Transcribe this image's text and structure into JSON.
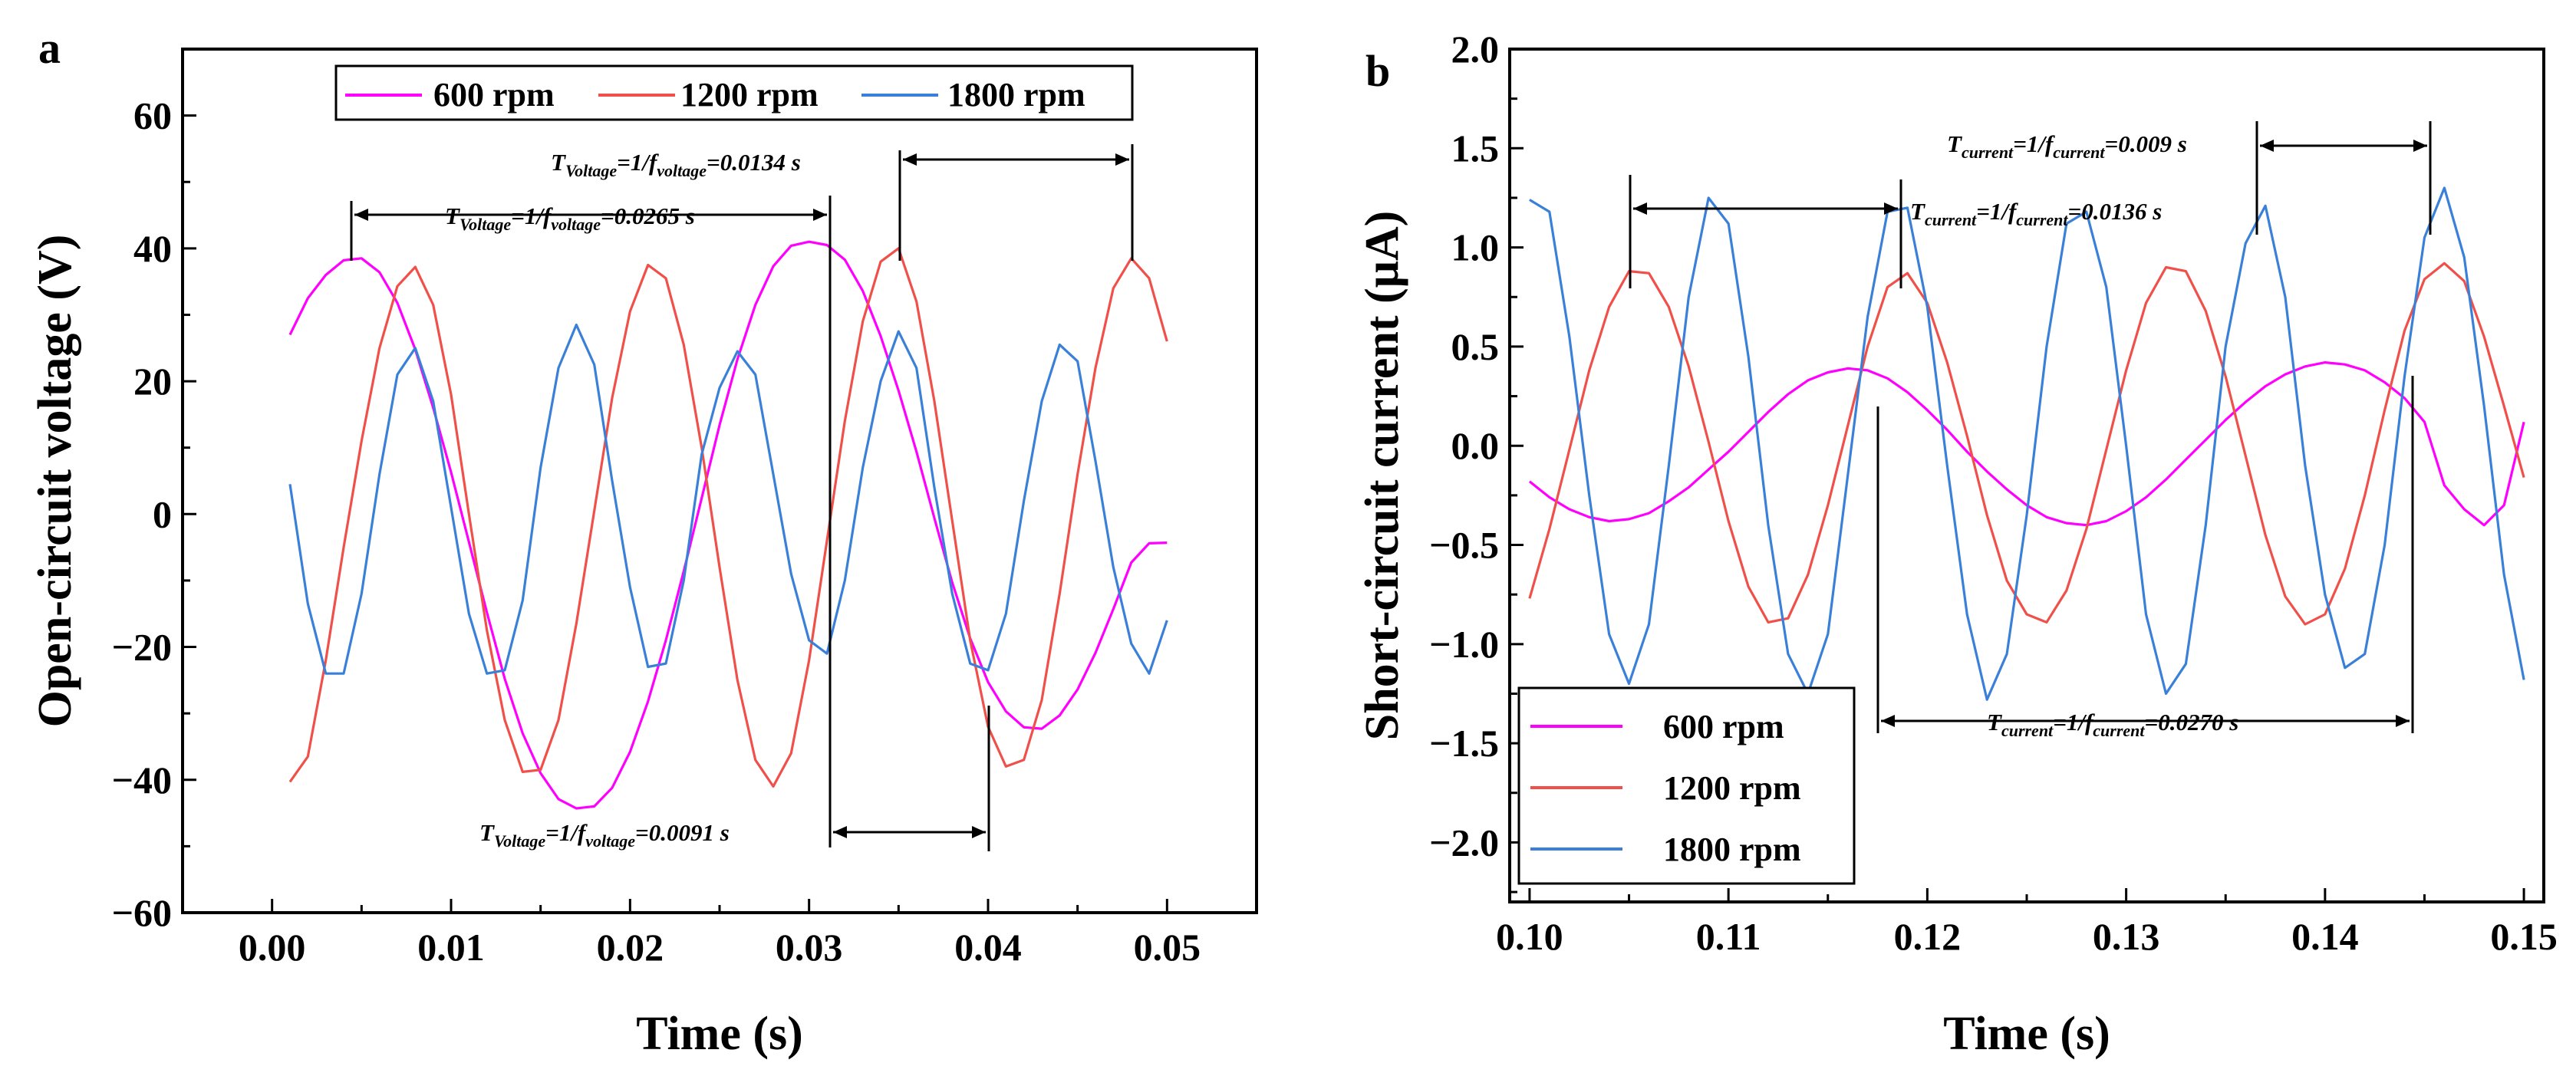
{
  "panel_a": {
    "letter": "a",
    "xlabel": "Time (s)",
    "ylabel": "Open-circuit voltage (V)",
    "xticks": [
      "0.00",
      "0.01",
      "0.02",
      "0.03",
      "0.04",
      "0.05"
    ],
    "yticks": [
      "60",
      "40",
      "20",
      "0",
      "−20",
      "−40",
      "−60"
    ],
    "legend": [
      "600 rpm",
      "1200 rpm",
      "1800 rpm"
    ],
    "annotations": [
      {
        "base": "T",
        "sub1": "Voltage",
        "mid": "=1/f",
        "sub2": "voltage",
        "tail": "=0.0265 s"
      },
      {
        "base": "T",
        "sub1": "Voltage",
        "mid": "=1/f",
        "sub2": "voltage",
        "tail": "=0.0134 s"
      },
      {
        "base": "T",
        "sub1": "Voltage",
        "mid": "=1/f",
        "sub2": "voltage",
        "tail": "=0.0091 s"
      }
    ]
  },
  "panel_b": {
    "letter": "b",
    "xlabel": "Time (s)",
    "ylabel": "Short-circuit current (μA)",
    "xticks": [
      "0.10",
      "0.11",
      "0.12",
      "0.13",
      "0.14",
      "0.15"
    ],
    "yticks": [
      "2.0",
      "1.5",
      "1.0",
      "0.5",
      "0.0",
      "−0.5",
      "−1.0",
      "−1.5",
      "−2.0"
    ],
    "legend": [
      "600 rpm",
      "1200 rpm",
      "1800 rpm"
    ],
    "annotations": [
      {
        "base": "T",
        "sub1": "current",
        "mid": "=1/f",
        "sub2": "current",
        "tail": "=0.009 s"
      },
      {
        "base": "T",
        "sub1": "current",
        "mid": "=1/f",
        "sub2": "current",
        "tail": "=0.0136 s"
      },
      {
        "base": "T",
        "sub1": "current",
        "mid": "=1/f",
        "sub2": "current",
        "tail": "=0.0270 s"
      }
    ]
  },
  "colors": {
    "s600": "#ff00ff",
    "s1200": "#f0504a",
    "s1800": "#3a80d8",
    "axis": "#000000"
  },
  "chart_data": [
    {
      "type": "line",
      "title": "",
      "xlabel": "Time (s)",
      "ylabel": "Open-circuit voltage (V)",
      "xlim": [
        -0.005,
        0.055
      ],
      "ylim": [
        -60,
        70
      ],
      "grid": false,
      "legend_position": "top",
      "x": [
        0.001,
        0.002,
        0.003,
        0.004,
        0.005,
        0.006,
        0.007,
        0.008,
        0.009,
        0.01,
        0.011,
        0.012,
        0.013,
        0.014,
        0.015,
        0.016,
        0.017,
        0.018,
        0.019,
        0.02,
        0.021,
        0.022,
        0.023,
        0.024,
        0.025,
        0.026,
        0.027,
        0.028,
        0.029,
        0.03,
        0.031,
        0.032,
        0.033,
        0.034,
        0.035,
        0.036,
        0.037,
        0.038,
        0.039,
        0.04,
        0.041,
        0.042,
        0.043,
        0.044,
        0.045,
        0.046,
        0.047,
        0.048,
        0.049,
        0.05
      ],
      "series": [
        {
          "name": "600 rpm",
          "color": "#ff00ff",
          "values": [
            27.0,
            32.5,
            36.0,
            38.2,
            38.5,
            36.4,
            31.8,
            24.8,
            16.0,
            6.3,
            -4.2,
            -14.8,
            -24.8,
            -33.0,
            -39.0,
            -42.9,
            -44.3,
            -44.0,
            -41.2,
            -35.8,
            -28.2,
            -19.0,
            -8.6,
            2.4,
            13.4,
            23.3,
            31.5,
            37.3,
            40.4,
            41.0,
            40.5,
            38.3,
            33.6,
            26.8,
            18.6,
            9.4,
            -0.6,
            -10.3,
            -18.7,
            -25.3,
            -29.7,
            -32.1,
            -32.3,
            -30.3,
            -26.4,
            -20.9,
            -14.3,
            -7.3,
            -4.4,
            -4.3
          ]
        },
        {
          "name": "1200 rpm",
          "color": "#f0504a",
          "values": [
            -40.3,
            -36.5,
            -22.0,
            -5.0,
            11.0,
            25.0,
            34.3,
            37.2,
            31.5,
            18.0,
            0.0,
            -17.5,
            -31.0,
            -38.8,
            -38.5,
            -31.0,
            -16.5,
            0.5,
            17.5,
            30.5,
            37.5,
            35.5,
            25.5,
            10.0,
            -8.0,
            -25.0,
            -37.0,
            -41.0,
            -36.0,
            -22.0,
            -4.0,
            14.0,
            29.0,
            38.0,
            40.0,
            32.0,
            17.0,
            -1.0,
            -19.0,
            -32.0,
            -38.0,
            -37.0,
            -28.0,
            -12.0,
            6.0,
            22.0,
            34.0,
            38.5,
            35.5,
            26.0
          ]
        },
        {
          "name": "1800 rpm",
          "color": "#3a80d8",
          "values": [
            4.5,
            -13.5,
            -24.0,
            -24.0,
            -12.0,
            6.0,
            21.0,
            25.0,
            17.0,
            1.0,
            -15.0,
            -24.0,
            -23.5,
            -13.0,
            7.0,
            22.0,
            28.5,
            22.5,
            5.0,
            -11.0,
            -23.0,
            -22.5,
            -10.0,
            9.0,
            19.0,
            24.5,
            21.0,
            6.0,
            -9.0,
            -19.0,
            -21.0,
            -10.0,
            7.0,
            20.0,
            27.5,
            22.0,
            4.0,
            -12.0,
            -22.5,
            -23.5,
            -15.0,
            2.0,
            17.0,
            25.5,
            23.0,
            8.0,
            -8.0,
            -19.5,
            -24.0,
            -16.0
          ]
        }
      ]
    },
    {
      "type": "line",
      "title": "",
      "xlabel": "Time (s)",
      "ylabel": "Short-circuit current (μA)",
      "xlim": [
        0.099,
        0.151
      ],
      "ylim": [
        -2.3,
        2.0
      ],
      "grid": false,
      "legend_position": "bottom-left",
      "x": [
        0.1,
        0.101,
        0.102,
        0.103,
        0.104,
        0.105,
        0.106,
        0.107,
        0.108,
        0.109,
        0.11,
        0.111,
        0.112,
        0.113,
        0.114,
        0.115,
        0.116,
        0.117,
        0.118,
        0.119,
        0.12,
        0.121,
        0.122,
        0.123,
        0.124,
        0.125,
        0.126,
        0.127,
        0.128,
        0.129,
        0.13,
        0.131,
        0.132,
        0.133,
        0.134,
        0.135,
        0.136,
        0.137,
        0.138,
        0.139,
        0.14,
        0.141,
        0.142,
        0.143,
        0.144,
        0.145,
        0.146,
        0.147,
        0.148,
        0.149,
        0.15
      ],
      "series": [
        {
          "name": "600 rpm",
          "color": "#ff00ff",
          "values": [
            -0.18,
            -0.26,
            -0.32,
            -0.36,
            -0.38,
            -0.37,
            -0.34,
            -0.28,
            -0.21,
            -0.12,
            -0.03,
            0.07,
            0.17,
            0.26,
            0.33,
            0.37,
            0.39,
            0.38,
            0.34,
            0.27,
            0.18,
            0.08,
            -0.03,
            -0.13,
            -0.22,
            -0.3,
            -0.36,
            -0.39,
            -0.4,
            -0.38,
            -0.33,
            -0.26,
            -0.17,
            -0.07,
            0.03,
            0.13,
            0.22,
            0.3,
            0.36,
            0.4,
            0.42,
            0.41,
            0.38,
            0.32,
            0.24,
            0.12,
            -0.2,
            -0.32,
            -0.4,
            -0.3,
            0.12
          ]
        },
        {
          "name": "1200 rpm",
          "color": "#f0504a",
          "values": [
            -0.77,
            -0.42,
            -0.02,
            0.38,
            0.7,
            0.88,
            0.87,
            0.7,
            0.4,
            0.02,
            -0.38,
            -0.71,
            -0.89,
            -0.87,
            -0.65,
            -0.3,
            0.1,
            0.5,
            0.8,
            0.87,
            0.72,
            0.42,
            0.05,
            -0.35,
            -0.68,
            -0.85,
            -0.89,
            -0.73,
            -0.42,
            -0.02,
            0.38,
            0.72,
            0.9,
            0.88,
            0.68,
            0.35,
            -0.05,
            -0.45,
            -0.76,
            -0.9,
            -0.85,
            -0.62,
            -0.25,
            0.18,
            0.58,
            0.84,
            0.92,
            0.83,
            0.55,
            0.2,
            -0.16
          ]
        },
        {
          "name": "1800 rpm",
          "color": "#3a80d8",
          "values": [
            1.24,
            1.18,
            0.55,
            -0.25,
            -0.95,
            -1.2,
            -0.9,
            -0.1,
            0.75,
            1.25,
            1.12,
            0.45,
            -0.4,
            -1.05,
            -1.25,
            -0.95,
            -0.15,
            0.65,
            1.18,
            1.2,
            0.7,
            -0.1,
            -0.85,
            -1.28,
            -1.05,
            -0.35,
            0.5,
            1.12,
            1.18,
            0.8,
            0.0,
            -0.85,
            -1.25,
            -1.1,
            -0.4,
            0.5,
            1.02,
            1.21,
            0.75,
            -0.1,
            -0.75,
            -1.12,
            -1.05,
            -0.5,
            0.35,
            1.05,
            1.3,
            0.95,
            0.2,
            -0.65,
            -1.18
          ]
        }
      ]
    }
  ]
}
